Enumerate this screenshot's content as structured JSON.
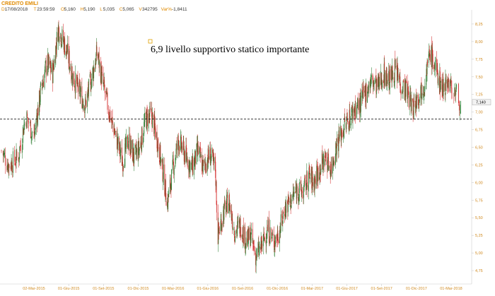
{
  "header": {
    "title": "CREDITO EMILI",
    "items": [
      {
        "label": "D",
        "value": "17/08/2018"
      },
      {
        "label": "T",
        "value": "23:59:59"
      },
      {
        "label": "O",
        "value": "5,160"
      },
      {
        "label": "H",
        "value": "5,190"
      },
      {
        "label": "L",
        "value": "5,035"
      },
      {
        "label": "C",
        "value": "5,065"
      },
      {
        "label": "V",
        "value": "342795"
      },
      {
        "label": "Var%",
        "value": "-1,8411"
      }
    ]
  },
  "colors": {
    "up": "#2e7d32",
    "down": "#d32f2f",
    "axis_text": "#d08a20",
    "header_accent": "#e08a00",
    "support_line": "#000000",
    "marker": "#e0a000"
  },
  "annotation": {
    "text": "6,9 livello supportivo statico importante"
  },
  "last_price_label": "7,140",
  "chart_data": {
    "type": "candlestick",
    "title": "CREDITO EMILI",
    "xlabel": "",
    "ylabel": "",
    "ylim": [
      4.6,
      8.45
    ],
    "grid": false,
    "y_ticks": [
      {
        "value": 8.25,
        "label": "8,25"
      },
      {
        "value": 8.0,
        "label": "8,00"
      },
      {
        "value": 7.75,
        "label": "7,75"
      },
      {
        "value": 7.5,
        "label": "7,50"
      },
      {
        "value": 7.25,
        "label": "7,25"
      },
      {
        "value": 7.0,
        "label": "7,00"
      },
      {
        "value": 6.75,
        "label": "6,75"
      },
      {
        "value": 6.5,
        "label": "6,50"
      },
      {
        "value": 6.25,
        "label": "6,25"
      },
      {
        "value": 6.0,
        "label": "6,00"
      },
      {
        "value": 5.75,
        "label": "5,75"
      },
      {
        "value": 5.5,
        "label": "5,50"
      },
      {
        "value": 5.25,
        "label": "5,25"
      },
      {
        "value": 5.0,
        "label": "5,00"
      },
      {
        "value": 4.75,
        "label": "4,75"
      }
    ],
    "x_ticks": [
      "02-Mar-2015",
      "01-Giu-2015",
      "01-Set-2015",
      "01-Dic-2015",
      "01-Mar-2016",
      "01-Giu-2016",
      "01-Set-2016",
      "01-Dic-2016",
      "01-Mar-2017",
      "01-Giu-2017",
      "01-Set-2017",
      "01-Dic-2017",
      "01-Mar-2018"
    ],
    "support_level": 6.9,
    "last_value": 7.14,
    "price_path": [
      {
        "date": "2015-01-02",
        "close": 6.45
      },
      {
        "date": "2015-01-15",
        "close": 6.25
      },
      {
        "date": "2015-02-01",
        "close": 6.35
      },
      {
        "date": "2015-02-15",
        "close": 6.95
      },
      {
        "date": "2015-03-02",
        "close": 6.65
      },
      {
        "date": "2015-03-20",
        "close": 7.3
      },
      {
        "date": "2015-04-05",
        "close": 7.7
      },
      {
        "date": "2015-04-20",
        "close": 7.55
      },
      {
        "date": "2015-05-05",
        "close": 8.2
      },
      {
        "date": "2015-05-15",
        "close": 8.05
      },
      {
        "date": "2015-05-28",
        "close": 7.85
      },
      {
        "date": "2015-06-12",
        "close": 7.5
      },
      {
        "date": "2015-06-28",
        "close": 7.3
      },
      {
        "date": "2015-07-15",
        "close": 7.1
      },
      {
        "date": "2015-08-01",
        "close": 7.5
      },
      {
        "date": "2015-08-15",
        "close": 7.85
      },
      {
        "date": "2015-08-28",
        "close": 7.45
      },
      {
        "date": "2015-09-15",
        "close": 7.0
      },
      {
        "date": "2015-10-01",
        "close": 6.7
      },
      {
        "date": "2015-10-20",
        "close": 6.3
      },
      {
        "date": "2015-11-05",
        "close": 6.6
      },
      {
        "date": "2015-11-20",
        "close": 6.35
      },
      {
        "date": "2015-12-05",
        "close": 6.5
      },
      {
        "date": "2015-12-20",
        "close": 6.9
      },
      {
        "date": "2016-01-05",
        "close": 6.95
      },
      {
        "date": "2016-01-20",
        "close": 6.6
      },
      {
        "date": "2016-02-05",
        "close": 6.1
      },
      {
        "date": "2016-02-15",
        "close": 5.7
      },
      {
        "date": "2016-03-01",
        "close": 6.2
      },
      {
        "date": "2016-03-15",
        "close": 6.6
      },
      {
        "date": "2016-04-01",
        "close": 6.4
      },
      {
        "date": "2016-04-20",
        "close": 6.2
      },
      {
        "date": "2016-05-05",
        "close": 6.45
      },
      {
        "date": "2016-05-20",
        "close": 6.2
      },
      {
        "date": "2016-06-05",
        "close": 6.4
      },
      {
        "date": "2016-06-20",
        "close": 6.2
      },
      {
        "date": "2016-06-27",
        "close": 5.25
      },
      {
        "date": "2016-07-10",
        "close": 5.55
      },
      {
        "date": "2016-07-25",
        "close": 5.75
      },
      {
        "date": "2016-08-10",
        "close": 5.3
      },
      {
        "date": "2016-08-25",
        "close": 5.4
      },
      {
        "date": "2016-09-10",
        "close": 5.15
      },
      {
        "date": "2016-09-20",
        "close": 5.25
      },
      {
        "date": "2016-10-05",
        "close": 4.95
      },
      {
        "date": "2016-10-20",
        "close": 5.1
      },
      {
        "date": "2016-11-05",
        "close": 5.35
      },
      {
        "date": "2016-11-20",
        "close": 5.15
      },
      {
        "date": "2016-12-05",
        "close": 5.3
      },
      {
        "date": "2016-12-20",
        "close": 5.65
      },
      {
        "date": "2017-01-05",
        "close": 5.75
      },
      {
        "date": "2017-01-20",
        "close": 5.9
      },
      {
        "date": "2017-02-05",
        "close": 5.85
      },
      {
        "date": "2017-02-20",
        "close": 6.1
      },
      {
        "date": "2017-03-05",
        "close": 6.0
      },
      {
        "date": "2017-03-20",
        "close": 6.2
      },
      {
        "date": "2017-04-05",
        "close": 6.35
      },
      {
        "date": "2017-04-20",
        "close": 6.2
      },
      {
        "date": "2017-05-05",
        "close": 6.55
      },
      {
        "date": "2017-05-20",
        "close": 6.75
      },
      {
        "date": "2017-06-05",
        "close": 6.9
      },
      {
        "date": "2017-06-20",
        "close": 7.05
      },
      {
        "date": "2017-07-05",
        "close": 7.1
      },
      {
        "date": "2017-07-20",
        "close": 7.3
      },
      {
        "date": "2017-08-05",
        "close": 7.45
      },
      {
        "date": "2017-08-20",
        "close": 7.35
      },
      {
        "date": "2017-09-05",
        "close": 7.55
      },
      {
        "date": "2017-09-20",
        "close": 7.45
      },
      {
        "date": "2017-10-05",
        "close": 7.6
      },
      {
        "date": "2017-10-20",
        "close": 7.4
      },
      {
        "date": "2017-11-05",
        "close": 7.3
      },
      {
        "date": "2017-11-20",
        "close": 7.05
      },
      {
        "date": "2017-12-05",
        "close": 7.25
      },
      {
        "date": "2017-12-20",
        "close": 7.4
      },
      {
        "date": "2018-01-05",
        "close": 7.85
      },
      {
        "date": "2018-01-20",
        "close": 7.6
      },
      {
        "date": "2018-02-05",
        "close": 7.35
      },
      {
        "date": "2018-02-20",
        "close": 7.45
      },
      {
        "date": "2018-03-05",
        "close": 7.3
      },
      {
        "date": "2018-03-15",
        "close": 7.14
      }
    ]
  }
}
